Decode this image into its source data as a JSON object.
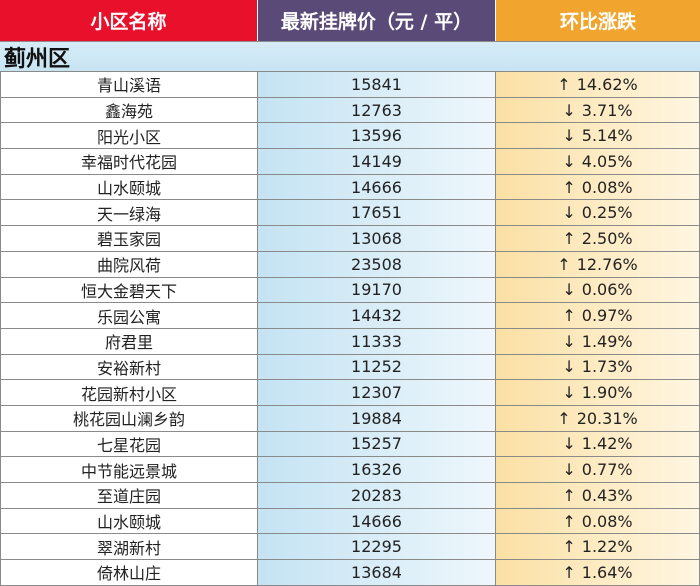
{
  "header": {
    "name_label": "小区名称",
    "price_label": "最新挂牌价（元 / 平）",
    "change_label": "环比涨跌"
  },
  "district": "蓟州区",
  "rows": [
    {
      "name": "青山溪语",
      "price": "15841",
      "arrow": "↑",
      "change": "14.62%"
    },
    {
      "name": "鑫海苑",
      "price": "12763",
      "arrow": "↓",
      "change": "3.71%"
    },
    {
      "name": "阳光小区",
      "price": "13596",
      "arrow": "↓",
      "change": "5.14%"
    },
    {
      "name": "幸福时代花园",
      "price": "14149",
      "arrow": "↓",
      "change": "4.05%"
    },
    {
      "name": "山水颐城",
      "price": "14666",
      "arrow": "↑",
      "change": "0.08%"
    },
    {
      "name": "天一绿海",
      "price": "17651",
      "arrow": "↓",
      "change": "0.25%"
    },
    {
      "name": "碧玉家园",
      "price": "13068",
      "arrow": "↑",
      "change": "2.50%"
    },
    {
      "name": "曲院风荷",
      "price": "23508",
      "arrow": "↑",
      "change": "12.76%"
    },
    {
      "name": "恒大金碧天下",
      "price": "19170",
      "arrow": "↓",
      "change": "0.06%"
    },
    {
      "name": "乐园公寓",
      "price": "14432",
      "arrow": "↑",
      "change": "0.97%"
    },
    {
      "name": "府君里",
      "price": "11333",
      "arrow": "↓",
      "change": "1.49%"
    },
    {
      "name": "安裕新村",
      "price": "11252",
      "arrow": "↓",
      "change": "1.73%"
    },
    {
      "name": "花园新村小区",
      "price": "12307",
      "arrow": "↓",
      "change": "1.90%"
    },
    {
      "name": "桃花园山澜乡韵",
      "price": "19884",
      "arrow": "↑",
      "change": "20.31%"
    },
    {
      "name": "七星花园",
      "price": "15257",
      "arrow": "↓",
      "change": "1.42%"
    },
    {
      "name": "中节能远景城",
      "price": "16326",
      "arrow": "↓",
      "change": "0.77%"
    },
    {
      "name": "至道庄园",
      "price": "20283",
      "arrow": "↑",
      "change": "0.43%"
    },
    {
      "name": "山水颐城",
      "price": "14666",
      "arrow": "↑",
      "change": "0.08%"
    },
    {
      "name": "翠湖新村",
      "price": "12295",
      "arrow": "↑",
      "change": "1.22%"
    },
    {
      "name": "倚林山庄",
      "price": "13684",
      "arrow": "↑",
      "change": "1.64%"
    }
  ]
}
